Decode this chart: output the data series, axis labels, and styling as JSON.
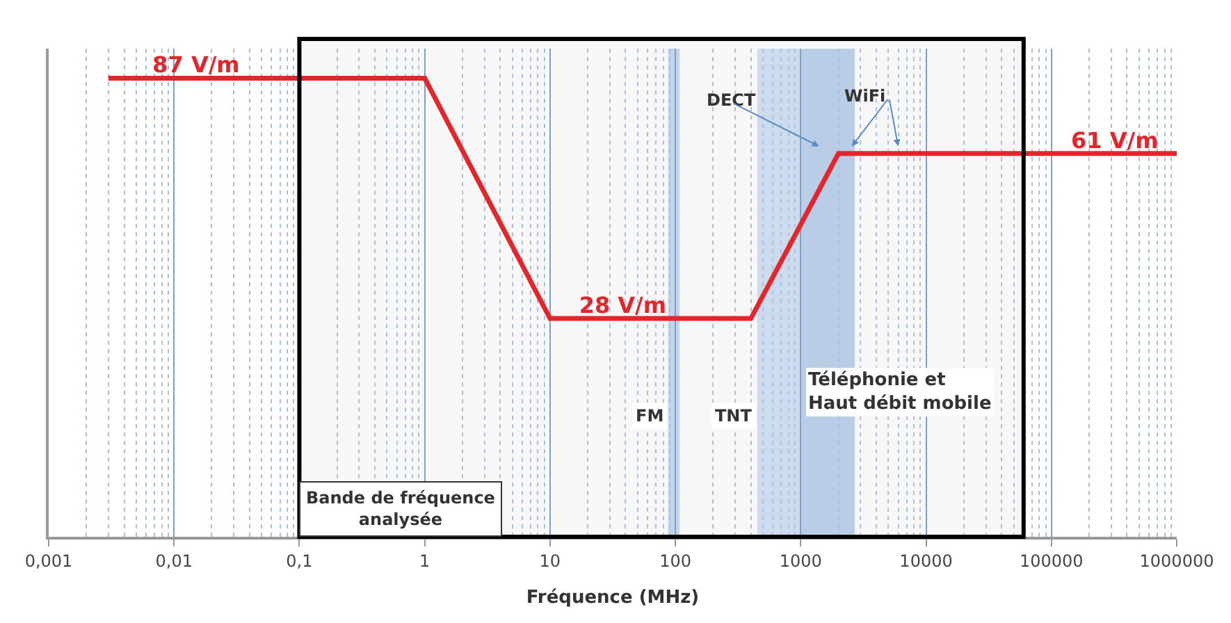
{
  "chart_data": {
    "type": "line",
    "xlabel": "Fréquence (MHz)",
    "x": [
      0.003,
      0.015,
      1,
      10,
      38,
      400,
      2000,
      320000,
      1000000
    ],
    "series": [
      {
        "color": "#e3262b",
        "values": [
          87,
          87,
          87,
          28,
          28,
          28,
          61,
          61,
          61
        ],
        "value_labels": [
          null,
          "87 V/m",
          null,
          null,
          "28 V/m",
          null,
          null,
          "61 V/m",
          null
        ]
      }
    ],
    "log": "xy",
    "xlim": [
      0.001,
      1000000
    ],
    "xticks": [
      {
        "value": 0.001,
        "label": "0,001"
      },
      {
        "value": 0.002,
        "label": null
      },
      {
        "value": 0.003,
        "label": null
      },
      {
        "value": 0.004,
        "label": null
      },
      {
        "value": 0.005,
        "label": null
      },
      {
        "value": 0.006,
        "label": null
      },
      {
        "value": 0.007,
        "label": null
      },
      {
        "value": 0.008,
        "label": null
      },
      {
        "value": 0.009,
        "label": null
      },
      {
        "value": 0.01,
        "label": "0,01"
      },
      {
        "value": 0.02,
        "label": null
      },
      {
        "value": 0.03,
        "label": null
      },
      {
        "value": 0.04,
        "label": null
      },
      {
        "value": 0.05,
        "label": null
      },
      {
        "value": 0.06,
        "label": null
      },
      {
        "value": 0.07,
        "label": null
      },
      {
        "value": 0.08,
        "label": null
      },
      {
        "value": 0.09,
        "label": null
      },
      {
        "value": 0.1,
        "label": "0,1"
      },
      {
        "value": 0.2,
        "label": null
      },
      {
        "value": 0.3,
        "label": null
      },
      {
        "value": 0.4,
        "label": null
      },
      {
        "value": 0.5,
        "label": null
      },
      {
        "value": 0.6,
        "label": null
      },
      {
        "value": 0.7,
        "label": null
      },
      {
        "value": 0.8,
        "label": null
      },
      {
        "value": 0.9,
        "label": null
      },
      1,
      {
        "value": 2,
        "label": null
      },
      {
        "value": 3,
        "label": null
      },
      {
        "value": 4,
        "label": null
      },
      {
        "value": 5,
        "label": null
      },
      {
        "value": 6,
        "label": null
      },
      {
        "value": 7,
        "label": null
      },
      {
        "value": 8,
        "label": null
      },
      {
        "value": 9,
        "label": null
      },
      10,
      {
        "value": 20,
        "label": null
      },
      {
        "value": 30,
        "label": null
      },
      {
        "value": 40,
        "label": null
      },
      {
        "value": 50,
        "label": null
      },
      {
        "value": 60,
        "label": null
      },
      {
        "value": 70,
        "label": null
      },
      {
        "value": 80,
        "label": null
      },
      {
        "value": 90,
        "label": null
      },
      100,
      {
        "value": 200,
        "label": null
      },
      {
        "value": 300,
        "label": null
      },
      {
        "value": 400,
        "label": null
      },
      {
        "value": 500,
        "label": null
      },
      {
        "value": 600,
        "label": null
      },
      {
        "value": 700,
        "label": null
      },
      {
        "value": 800,
        "label": null
      },
      {
        "value": 900,
        "label": null
      },
      1000,
      {
        "value": 2000,
        "label": null
      },
      {
        "value": 3000,
        "label": null
      },
      {
        "value": 4000,
        "label": null
      },
      {
        "value": 5000,
        "label": null
      },
      {
        "value": 6000,
        "label": null
      },
      {
        "value": 7000,
        "label": null
      },
      {
        "value": 8000,
        "label": null
      },
      {
        "value": 9000,
        "label": null
      },
      10000,
      {
        "value": 20000,
        "label": null
      },
      {
        "value": 30000,
        "label": null
      },
      {
        "value": 40000,
        "label": null
      },
      {
        "value": 50000,
        "label": null
      },
      {
        "value": 60000,
        "label": null
      },
      {
        "value": 70000,
        "label": null
      },
      {
        "value": 80000,
        "label": null
      },
      {
        "value": 90000,
        "label": null
      },
      100000,
      {
        "value": 200000,
        "label": null
      },
      {
        "value": 300000,
        "label": null
      },
      {
        "value": 400000,
        "label": null
      },
      {
        "value": 500000,
        "label": null
      },
      {
        "value": 600000,
        "label": null
      },
      {
        "value": 700000,
        "label": null
      },
      {
        "value": 800000,
        "label": null
      },
      {
        "value": 900000,
        "label": null
      },
      1000000
    ],
    "ylim": [
      10,
      100
    ],
    "tick_labels": "x",
    "grid": "x",
    "marker": "none",
    "line_style": "solid",
    "bands": [
      {
        "axis": "x",
        "from": 0.1,
        "to": 60000,
        "label": "Bande de fréquence\nanalysée",
        "color": "#000000"
      },
      {
        "axis": "x",
        "from": 87.5,
        "to": 108,
        "label": "FM",
        "color": "#c3d4ea"
      },
      {
        "axis": "x",
        "from": 450,
        "to": 1000,
        "label": "TNT",
        "color": "#cddbee"
      },
      {
        "axis": "x",
        "from": 1000,
        "to": 2700,
        "color": "#b9cde6"
      }
    ],
    "annotations": [
      "DECT",
      "WiFi",
      "Téléphonie et\nHaut débit mobile"
    ]
  }
}
